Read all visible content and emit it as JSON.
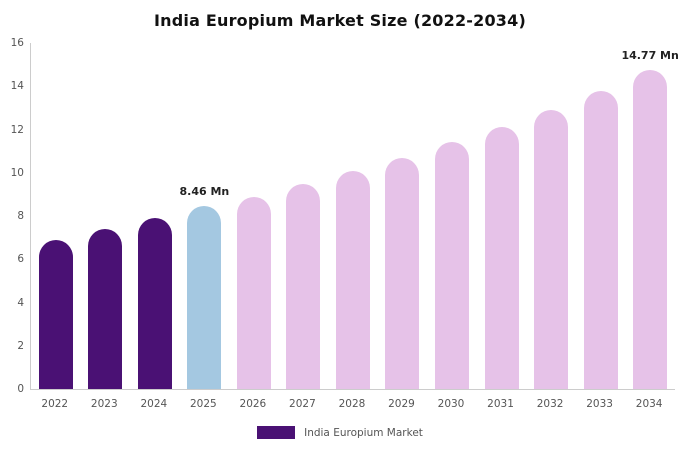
{
  "legend": {
    "label": "India Europium Market",
    "color": "#4a1174"
  },
  "chart_data": {
    "type": "bar",
    "title": "India Europium Market Size (2022-2034)",
    "categories": [
      "2022",
      "2023",
      "2024",
      "2025",
      "2026",
      "2027",
      "2028",
      "2029",
      "2030",
      "2031",
      "2032",
      "2033",
      "2034"
    ],
    "values": [
      6.9,
      7.4,
      7.9,
      8.46,
      8.9,
      9.5,
      10.1,
      10.7,
      11.4,
      12.1,
      12.9,
      13.8,
      14.77
    ],
    "bar_colors": [
      "#4a1174",
      "#4a1174",
      "#4a1174",
      "#a4c8e1",
      "#e6c2e8",
      "#e6c2e8",
      "#e6c2e8",
      "#e6c2e8",
      "#e6c2e8",
      "#e6c2e8",
      "#e6c2e8",
      "#e6c2e8",
      "#e6c2e8"
    ],
    "annotations": [
      {
        "category": "2025",
        "text": "8.46 Mn"
      },
      {
        "category": "2034",
        "text": "14.77 Mn"
      }
    ],
    "xlabel": "",
    "ylabel": "",
    "ylim": [
      0,
      16
    ],
    "yticks": [
      0,
      2,
      4,
      6,
      8,
      10,
      12,
      14,
      16
    ],
    "grid": false,
    "legend_position": "bottom",
    "axis_color": "#cccccc"
  }
}
